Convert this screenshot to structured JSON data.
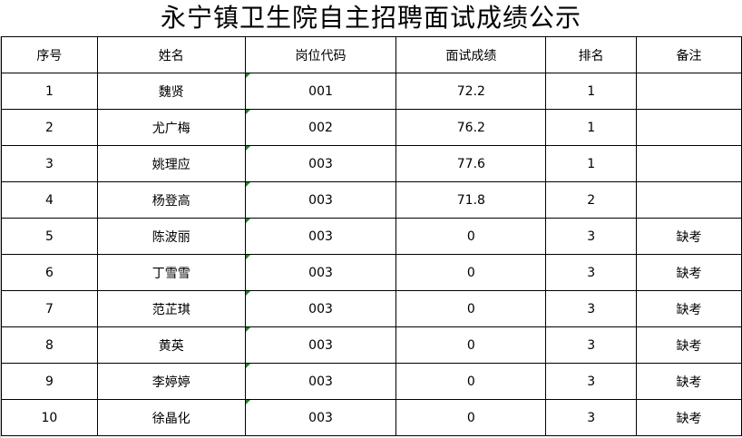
{
  "title": "永宁镇卫生院自主招聘面试成绩公示",
  "headers": [
    "序号",
    "姓名",
    "岗位代码",
    "面试成绩",
    "排名",
    "备注"
  ],
  "rows": [
    [
      "1",
      "魏贤",
      "001",
      "72.2",
      "1",
      ""
    ],
    [
      "2",
      "尤广梅",
      "002",
      "76.2",
      "1",
      ""
    ],
    [
      "3",
      "姚理应",
      "003",
      "77.6",
      "1",
      ""
    ],
    [
      "4",
      "杨登高",
      "003",
      "71.8",
      "2",
      ""
    ],
    [
      "5",
      "陈波丽",
      "003",
      "0",
      "3",
      "缺考"
    ],
    [
      "6",
      "丁雪雪",
      "003",
      "0",
      "3",
      "缺考"
    ],
    [
      "7",
      "范芷琪",
      "003",
      "0",
      "3",
      "缺考"
    ],
    [
      "8",
      "黄英",
      "003",
      "0",
      "3",
      "缺考"
    ],
    [
      "9",
      "李婷婷",
      "003",
      "0",
      "3",
      "缺考"
    ],
    [
      "10",
      "徐晶化",
      "003",
      "0",
      "3",
      "缺考"
    ]
  ],
  "colors": {
    "indicator": "#1a8a1a",
    "border": "#000000"
  }
}
